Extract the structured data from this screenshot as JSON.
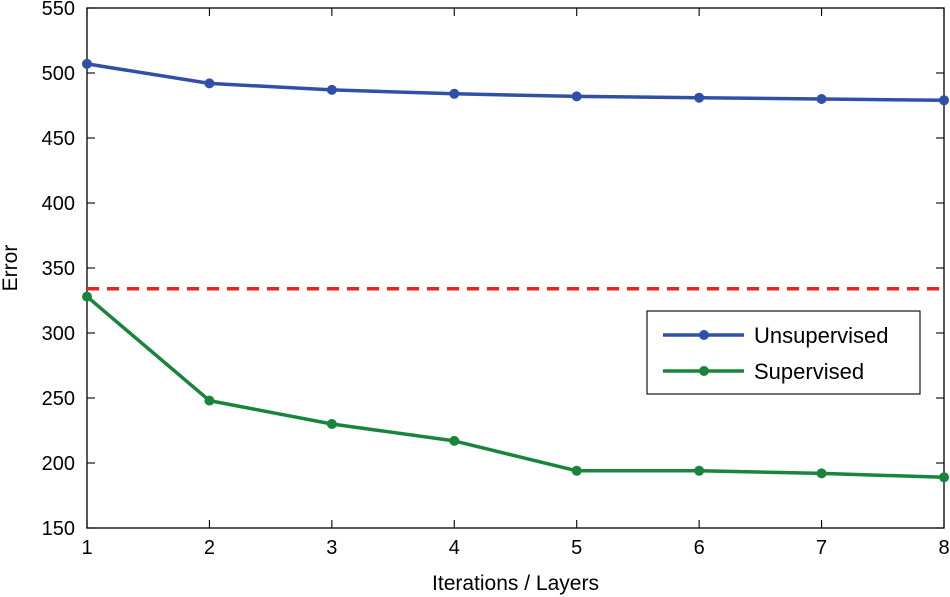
{
  "chart_data": {
    "type": "line",
    "title": "",
    "xlabel": "Iterations / Layers",
    "ylabel": "Error",
    "x": [
      1,
      2,
      3,
      4,
      5,
      6,
      7,
      8
    ],
    "xlim": [
      1,
      8
    ],
    "ylim": [
      150,
      550
    ],
    "xticks": [
      1,
      2,
      3,
      4,
      5,
      6,
      7,
      8
    ],
    "yticks": [
      150,
      200,
      250,
      300,
      350,
      400,
      450,
      500,
      550
    ],
    "grid": false,
    "legend_position": "center-right",
    "series": [
      {
        "name": "Unsupervised",
        "color": "#3050a8",
        "marker": "circle",
        "values": [
          507,
          492,
          487,
          484,
          482,
          481,
          480,
          479
        ]
      },
      {
        "name": "Supervised",
        "color": "#18843c",
        "marker": "circle",
        "values": [
          328,
          248,
          230,
          217,
          194,
          194,
          192,
          189
        ]
      }
    ],
    "reference_lines": [
      {
        "orientation": "horizontal",
        "value": 334,
        "color": "#ee2020",
        "style": "dashed"
      }
    ]
  }
}
